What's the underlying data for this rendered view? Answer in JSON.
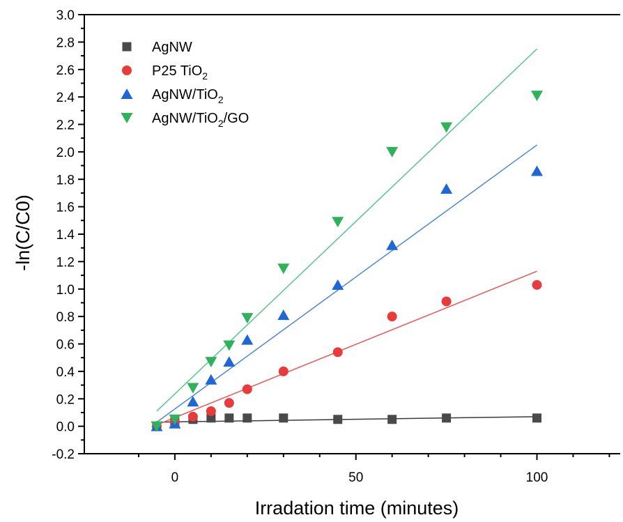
{
  "chart_data": {
    "type": "scatter",
    "title": "",
    "xlabel": "Irradation time (minutes)",
    "ylabel": "-ln(C/C0)",
    "xlim": [
      -25,
      123
    ],
    "ylim": [
      -0.2,
      3.0
    ],
    "x_ticks": [
      0,
      50,
      100
    ],
    "x_tick_labels": [
      "0",
      "50",
      "100"
    ],
    "y_ticks": [
      -0.2,
      0.0,
      0.2,
      0.4,
      0.6,
      0.8,
      1.0,
      1.2,
      1.4,
      1.6,
      1.8,
      2.0,
      2.2,
      2.4,
      2.6,
      2.8,
      3.0
    ],
    "y_tick_labels": [
      "-0.2",
      "0.0",
      "0.2",
      "0.4",
      "0.6",
      "0.8",
      "1.0",
      "1.2",
      "1.4",
      "1.6",
      "1.8",
      "2.0",
      "2.2",
      "2.4",
      "2.6",
      "2.8",
      "3.0"
    ],
    "grid": false,
    "legend_position": "top-left",
    "series": [
      {
        "name": "AgNW",
        "label_main": "AgNW",
        "label_sub": "",
        "label_tail": "",
        "marker": "square",
        "color": "#4a4a4a",
        "fit_color": "#3a3a3a",
        "x": [
          -5,
          0,
          5,
          10,
          15,
          20,
          30,
          45,
          60,
          75,
          100
        ],
        "y": [
          0.0,
          0.03,
          0.05,
          0.06,
          0.06,
          0.06,
          0.06,
          0.05,
          0.05,
          0.06,
          0.06
        ],
        "fit": {
          "x": [
            -5,
            100
          ],
          "y": [
            0.03,
            0.07
          ]
        }
      },
      {
        "name": "P25 TiO2",
        "label_main": "P25 TiO",
        "label_sub": "2",
        "label_tail": "",
        "marker": "circle",
        "color": "#e83b3b",
        "fit_color": "#f05454",
        "x": [
          -5,
          0,
          5,
          10,
          15,
          20,
          30,
          45,
          60,
          75,
          100
        ],
        "y": [
          0.0,
          0.03,
          0.07,
          0.11,
          0.17,
          0.27,
          0.4,
          0.54,
          0.8,
          0.91,
          1.03
        ],
        "fit": {
          "x": [
            -5,
            100
          ],
          "y": [
            0.01,
            1.13
          ]
        }
      },
      {
        "name": "AgNW/TiO2",
        "label_main": "AgNW/TiO",
        "label_sub": "2",
        "label_tail": "",
        "marker": "triangle-up",
        "color": "#1f66d6",
        "fit_color": "#4f86d8",
        "x": [
          -5,
          0,
          5,
          10,
          15,
          20,
          30,
          45,
          60,
          75,
          100
        ],
        "y": [
          0.0,
          0.02,
          0.18,
          0.34,
          0.47,
          0.63,
          0.81,
          1.03,
          1.32,
          1.73,
          1.86
        ],
        "fit": {
          "x": [
            -5,
            100
          ],
          "y": [
            0.03,
            2.05
          ]
        }
      },
      {
        "name": "AgNW/TiO2/GO",
        "label_main": "AgNW/TiO",
        "label_sub": "2",
        "label_tail": "/GO",
        "marker": "triangle-down",
        "color": "#2fb35a",
        "fit_color": "#57c48f",
        "x": [
          -5,
          0,
          5,
          10,
          15,
          20,
          30,
          45,
          60,
          75,
          100
        ],
        "y": [
          0.0,
          0.05,
          0.28,
          0.47,
          0.59,
          0.79,
          1.15,
          1.49,
          2.0,
          2.18,
          2.41
        ],
        "fit": {
          "x": [
            -5,
            100
          ],
          "y": [
            0.11,
            2.75
          ]
        }
      }
    ]
  }
}
